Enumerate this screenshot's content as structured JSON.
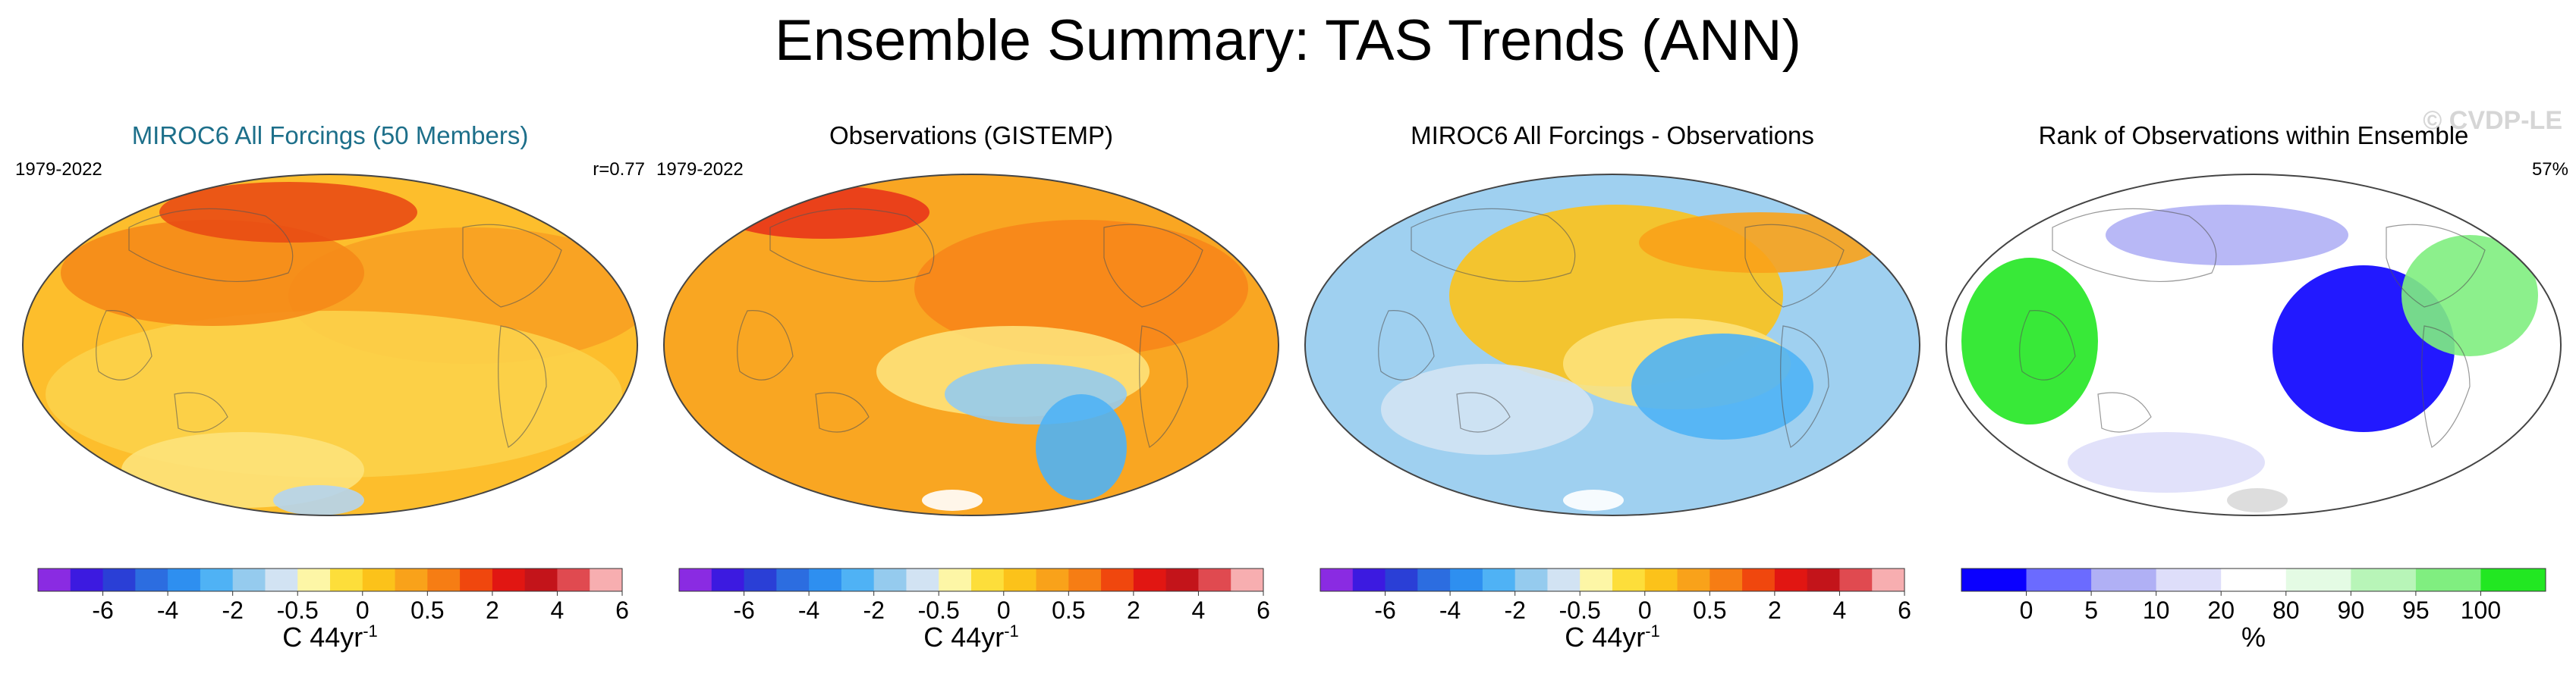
{
  "title": "Ensemble Summary: TAS Trends (ANN)",
  "watermark": "© CVDP-LE",
  "panels": [
    {
      "title": "MIROC6 All Forcings (50 Members)",
      "left_label": "1979-2022",
      "right_label": "r=0.77",
      "colorbar": {
        "colors": [
          "#8a2be2",
          "#3c1ae0",
          "#2a3fd6",
          "#2c6de0",
          "#2e8ff0",
          "#4fb2f5",
          "#95cbee",
          "#d2e3f3",
          "#fdf6a6",
          "#fdde3a",
          "#fcc21a",
          "#f9a21a",
          "#f67d14",
          "#f0470e",
          "#e11612",
          "#c3141a",
          "#e04a50",
          "#f7aeb0"
        ],
        "ticks": [
          "-6",
          "-4",
          "-2",
          "-0.5",
          "0",
          "0.5",
          "2",
          "4",
          "6"
        ],
        "label": "C 44yr",
        "label_sup": "-1"
      },
      "map": {
        "base": "#fdbe2c",
        "blobs": [
          {
            "color": "#f8a022"
          },
          {
            "color": "#fcd24a"
          },
          {
            "color": "#f58a18"
          },
          {
            "color": "#e94b14"
          },
          {
            "color": "#fde27a"
          },
          {
            "color": "#b4d4ef"
          }
        ]
      }
    },
    {
      "title": "Observations (GISTEMP)",
      "left_label": "1979-2022",
      "right_label": "",
      "colorbar": {
        "colors": [
          "#8a2be2",
          "#3c1ae0",
          "#2a3fd6",
          "#2c6de0",
          "#2e8ff0",
          "#4fb2f5",
          "#95cbee",
          "#d2e3f3",
          "#fdf6a6",
          "#fdde3a",
          "#fcc21a",
          "#f9a21a",
          "#f67d14",
          "#f0470e",
          "#e11612",
          "#c3141a",
          "#e04a50",
          "#f7aeb0"
        ],
        "ticks": [
          "-6",
          "-4",
          "-2",
          "-0.5",
          "0",
          "0.5",
          "2",
          "4",
          "6"
        ],
        "label": "C 44yr",
        "label_sup": "-1"
      },
      "map": {
        "base": "#f9a622",
        "blobs": [
          {
            "color": "#e8361a"
          },
          {
            "color": "#f7861a"
          },
          {
            "color": "#fde27a"
          },
          {
            "color": "#95cbee"
          },
          {
            "color": "#4fb2f5"
          },
          {
            "color": "#ffffff"
          }
        ]
      }
    },
    {
      "title": "MIROC6 All Forcings - Observations",
      "left_label": "",
      "right_label": "",
      "colorbar": {
        "colors": [
          "#8a2be2",
          "#3c1ae0",
          "#2a3fd6",
          "#2c6de0",
          "#2e8ff0",
          "#4fb2f5",
          "#95cbee",
          "#d2e3f3",
          "#fdf6a6",
          "#fdde3a",
          "#fcc21a",
          "#f9a21a",
          "#f67d14",
          "#f0470e",
          "#e11612",
          "#c3141a",
          "#e04a50",
          "#f7aeb0"
        ],
        "ticks": [
          "-6",
          "-4",
          "-2",
          "-0.5",
          "0",
          "0.5",
          "2",
          "4",
          "6"
        ],
        "label": "C 44yr",
        "label_sup": "-1"
      },
      "map": {
        "base": "#9fd0f0",
        "blobs": [
          {
            "color": "#fcc21a"
          },
          {
            "color": "#fde27a"
          },
          {
            "color": "#4fb2f5"
          },
          {
            "color": "#f9a21a"
          },
          {
            "color": "#d2e3f3"
          },
          {
            "color": "#ffffff"
          }
        ]
      }
    },
    {
      "title": "Rank of Observations within Ensemble",
      "left_label": "",
      "right_label": "57%",
      "colorbar": {
        "colors": [
          "#0a00ff",
          "#6b6bff",
          "#b0b0f5",
          "#dedefa",
          "#ffffff",
          "#e4fbe4",
          "#b8f5b8",
          "#80ee80",
          "#22e722"
        ],
        "ticks": [
          "0",
          "5",
          "10",
          "20",
          "80",
          "90",
          "95",
          "100"
        ],
        "label": "%",
        "label_sup": ""
      },
      "map": {
        "base": "#ffffff",
        "blobs": [
          {
            "color": "#22e722"
          },
          {
            "color": "#0a00ff"
          },
          {
            "color": "#b0b0f5"
          },
          {
            "color": "#80ee80"
          },
          {
            "color": "#dedefa"
          },
          {
            "color": "#d9d9d9"
          }
        ]
      }
    }
  ]
}
